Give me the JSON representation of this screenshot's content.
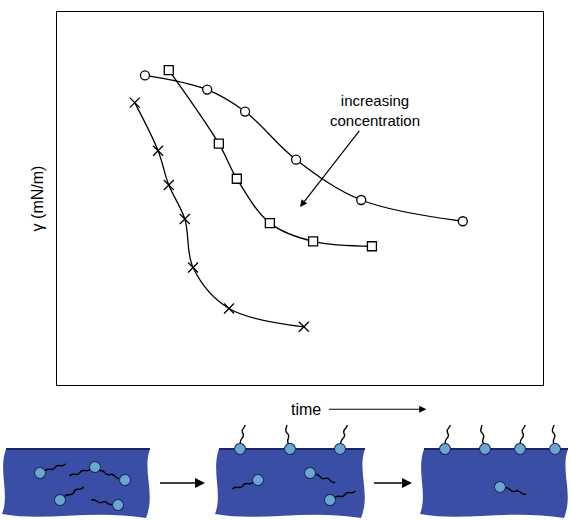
{
  "chart_data": {
    "type": "line",
    "y_label": "γ (mN/m)",
    "x_label": "time",
    "annotations": [
      {
        "text": "increasing concentration"
      }
    ],
    "xlim": [
      0,
      10
    ],
    "ylim": [
      0,
      10
    ],
    "xticks": [],
    "yticks": [],
    "tick_labels": false,
    "grid": false,
    "series": [
      {
        "color": "#000000",
        "marker": "circle",
        "line_style": "solid",
        "x": [
          1.81,
          3.09,
          3.87,
          4.92,
          6.26,
          8.35
        ],
        "values": [
          8.3,
          7.92,
          7.33,
          6.04,
          4.96,
          4.39
        ]
      },
      {
        "color": "#000000",
        "marker": "square",
        "line_style": "solid",
        "x": [
          2.3,
          3.33,
          3.7,
          4.38,
          5.27,
          6.48
        ],
        "values": [
          8.44,
          6.47,
          5.53,
          4.34,
          3.85,
          3.72
        ]
      },
      {
        "color": "#000000",
        "marker": "x",
        "line_style": "solid",
        "x": [
          1.6,
          2.08,
          2.3,
          2.63,
          2.8,
          3.54,
          5.08
        ],
        "values": [
          7.57,
          6.28,
          5.36,
          4.45,
          3.15,
          2.05,
          1.56
        ]
      }
    ]
  }
}
